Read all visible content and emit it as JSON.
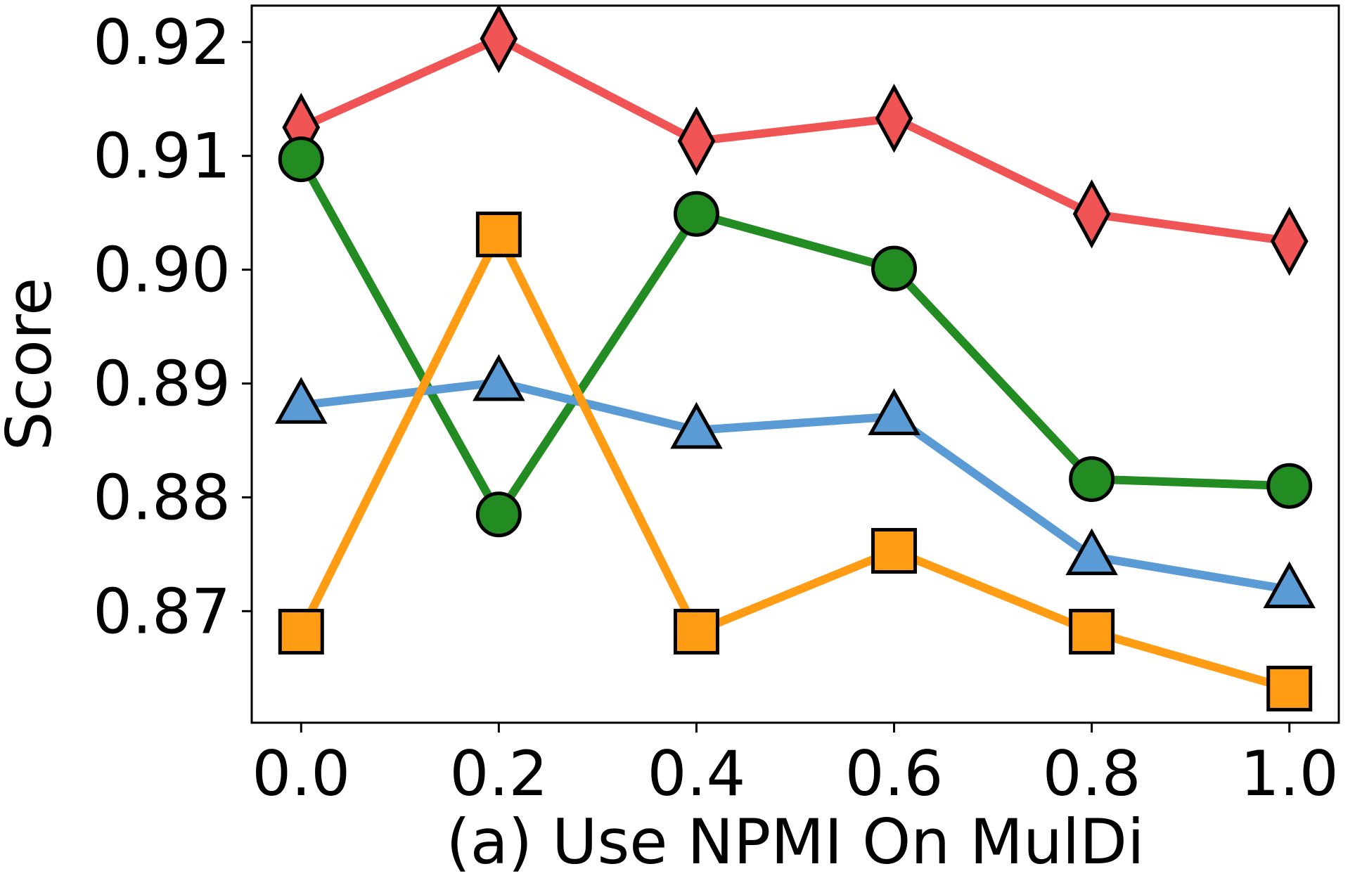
{
  "chart_data": {
    "type": "line",
    "title": "",
    "xlabel": "(a) Use NPMI On MulDi",
    "ylabel": "Score",
    "x": [
      0.0,
      0.2,
      0.4,
      0.6,
      0.8,
      1.0
    ],
    "x_tick_labels": [
      "0.0",
      "0.2",
      "0.4",
      "0.6",
      "0.8",
      "1.0"
    ],
    "y_ticks": [
      0.87,
      0.88,
      0.89,
      0.9,
      0.91,
      0.92
    ],
    "y_tick_labels": [
      "0.87",
      "0.88",
      "0.89",
      "0.90",
      "0.91",
      "0.92"
    ],
    "xlim": [
      -0.05,
      1.05
    ],
    "ylim": [
      0.8602,
      0.9232
    ],
    "grid": false,
    "legend": false,
    "series": [
      {
        "marker": "diamond",
        "color": "#f05454",
        "values": [
          0.9125,
          0.9203,
          0.9113,
          0.9133,
          0.9049,
          0.9025
        ]
      },
      {
        "marker": "circle",
        "color": "#228b22",
        "values": [
          0.9097,
          0.8785,
          0.9049,
          0.9001,
          0.8816,
          0.881
        ]
      },
      {
        "marker": "triangle",
        "color": "#5b9bd5",
        "values": [
          0.8881,
          0.8901,
          0.8859,
          0.8871,
          0.8748,
          0.8719
        ]
      },
      {
        "marker": "square",
        "color": "#ff9c14",
        "values": [
          0.8682,
          0.9031,
          0.8682,
          0.8753,
          0.8682,
          0.8632
        ]
      }
    ]
  }
}
